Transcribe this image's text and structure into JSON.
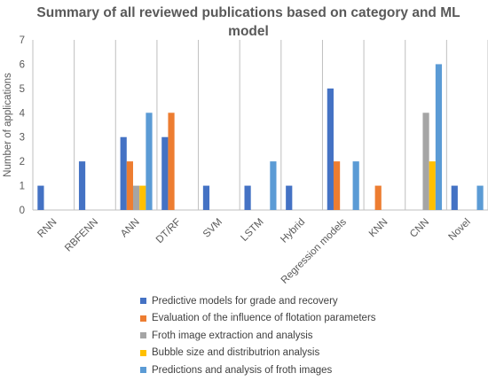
{
  "chart_data": {
    "type": "bar",
    "title": "Summary of all reviewed publications based on category and ML model",
    "xlabel": "",
    "ylabel": "Number of applications",
    "ylim": [
      0,
      7
    ],
    "yticks": [
      "0",
      "1",
      "2",
      "3",
      "4",
      "5",
      "6",
      "7"
    ],
    "grid": "vertical separators between categories",
    "legend_position": "bottom",
    "categories": [
      "RNN",
      "RBFENN",
      "ANN",
      "DT/RF",
      "SVM",
      "LSTM",
      "Hybrid",
      "Regression models",
      "KNN",
      "CNN",
      "Novel"
    ],
    "series": [
      {
        "name": "Predictive models for grade and recovery",
        "color": "#4472C4",
        "values": [
          1,
          2,
          3,
          3,
          1,
          1,
          1,
          5,
          0,
          0,
          1
        ]
      },
      {
        "name": "Evaluation of the influence of flotation parameters",
        "color": "#ED7D31",
        "values": [
          0,
          0,
          2,
          4,
          0,
          0,
          0,
          2,
          1,
          0,
          0
        ]
      },
      {
        "name": "Froth image extraction and analysis",
        "color": "#A5A5A5",
        "values": [
          0,
          0,
          1,
          0,
          0,
          0,
          0,
          0,
          0,
          4,
          0
        ]
      },
      {
        "name": "Bubble size and distributrion analysis",
        "color": "#FFC000",
        "values": [
          0,
          0,
          1,
          0,
          0,
          0,
          0,
          0,
          0,
          2,
          0
        ]
      },
      {
        "name": "Predictions and analysis of froth images",
        "color": "#5B9BD5",
        "values": [
          0,
          0,
          4,
          0,
          0,
          2,
          0,
          2,
          0,
          6,
          1
        ]
      }
    ]
  }
}
